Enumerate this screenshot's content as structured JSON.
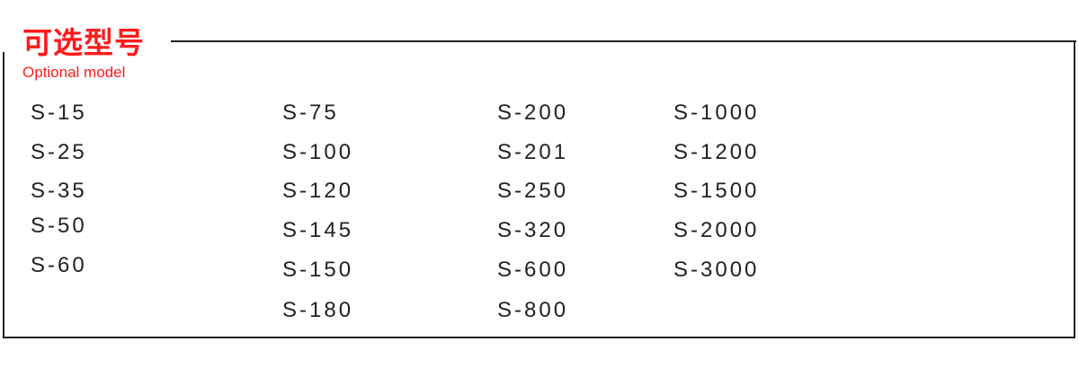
{
  "header": {
    "title_cn": "可选型号",
    "title_en": "Optional model",
    "title_color": "#ff1a1a"
  },
  "columns": [
    [
      "S-15",
      "S-25",
      "S-35",
      "S-50",
      "S-60"
    ],
    [
      "S-75",
      "S-100",
      "S-120",
      "S-145",
      "S-150",
      "S-180"
    ],
    [
      "S-200",
      "S-201",
      "S-250",
      "S-320",
      "S-600",
      "S-800"
    ],
    [
      "S-1000",
      "S-1200",
      "S-1500",
      "S-2000",
      "S-3000"
    ]
  ]
}
